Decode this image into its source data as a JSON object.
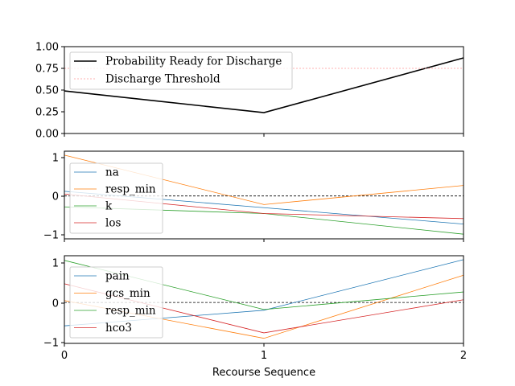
{
  "chart_data": [
    {
      "type": "line",
      "x": [
        0,
        1,
        2
      ],
      "ylim": [
        0,
        1
      ],
      "yticks": [
        "0.00",
        "0.25",
        "0.50",
        "0.75",
        "1.00"
      ],
      "grid": false,
      "legend": "upper-left",
      "series": [
        {
          "name": "Probability Ready for Discharge",
          "values": [
            0.49,
            0.24,
            0.87
          ],
          "color": "#000000",
          "style": "solid",
          "width": "thick"
        },
        {
          "name": "Discharge Threshold",
          "values": [
            0.75,
            0.75,
            0.75
          ],
          "color": "#ff9999",
          "style": "dotted",
          "width": "thin"
        }
      ]
    },
    {
      "type": "line",
      "x": [
        0,
        1,
        2
      ],
      "ylim": [
        -1.1,
        1.15
      ],
      "yticks": [
        "−1",
        "0",
        "1"
      ],
      "zero_line": true,
      "grid": false,
      "legend": "lower-left",
      "series": [
        {
          "name": "na",
          "values": [
            0.12,
            -0.3,
            -0.72
          ],
          "color": "#1f77b4"
        },
        {
          "name": "resp_min",
          "values": [
            1.05,
            -0.22,
            0.27
          ],
          "color": "#ff7f0e"
        },
        {
          "name": "k",
          "values": [
            -0.28,
            -0.45,
            -0.98
          ],
          "color": "#2ca02c"
        },
        {
          "name": "los",
          "values": [
            0.05,
            -0.45,
            -0.58
          ],
          "color": "#d62728"
        }
      ]
    },
    {
      "type": "line",
      "x": [
        0,
        1,
        2
      ],
      "xlabel": "Recourse Sequence",
      "xticks": [
        "0",
        "1",
        "2"
      ],
      "ylim": [
        -1.05,
        1.2
      ],
      "yticks": [
        "−1",
        "0",
        "1"
      ],
      "zero_line": true,
      "grid": false,
      "legend": "lower-left",
      "series": [
        {
          "name": "pain",
          "values": [
            -0.6,
            -0.2,
            1.1
          ],
          "color": "#1f77b4"
        },
        {
          "name": "gcs_min",
          "values": [
            0.05,
            -0.92,
            0.7
          ],
          "color": "#ff7f0e"
        },
        {
          "name": "resp_min",
          "values": [
            1.08,
            -0.18,
            0.27
          ],
          "color": "#2ca02c"
        },
        {
          "name": "hco3",
          "values": [
            0.48,
            -0.78,
            0.07
          ],
          "color": "#d62728"
        }
      ]
    }
  ]
}
